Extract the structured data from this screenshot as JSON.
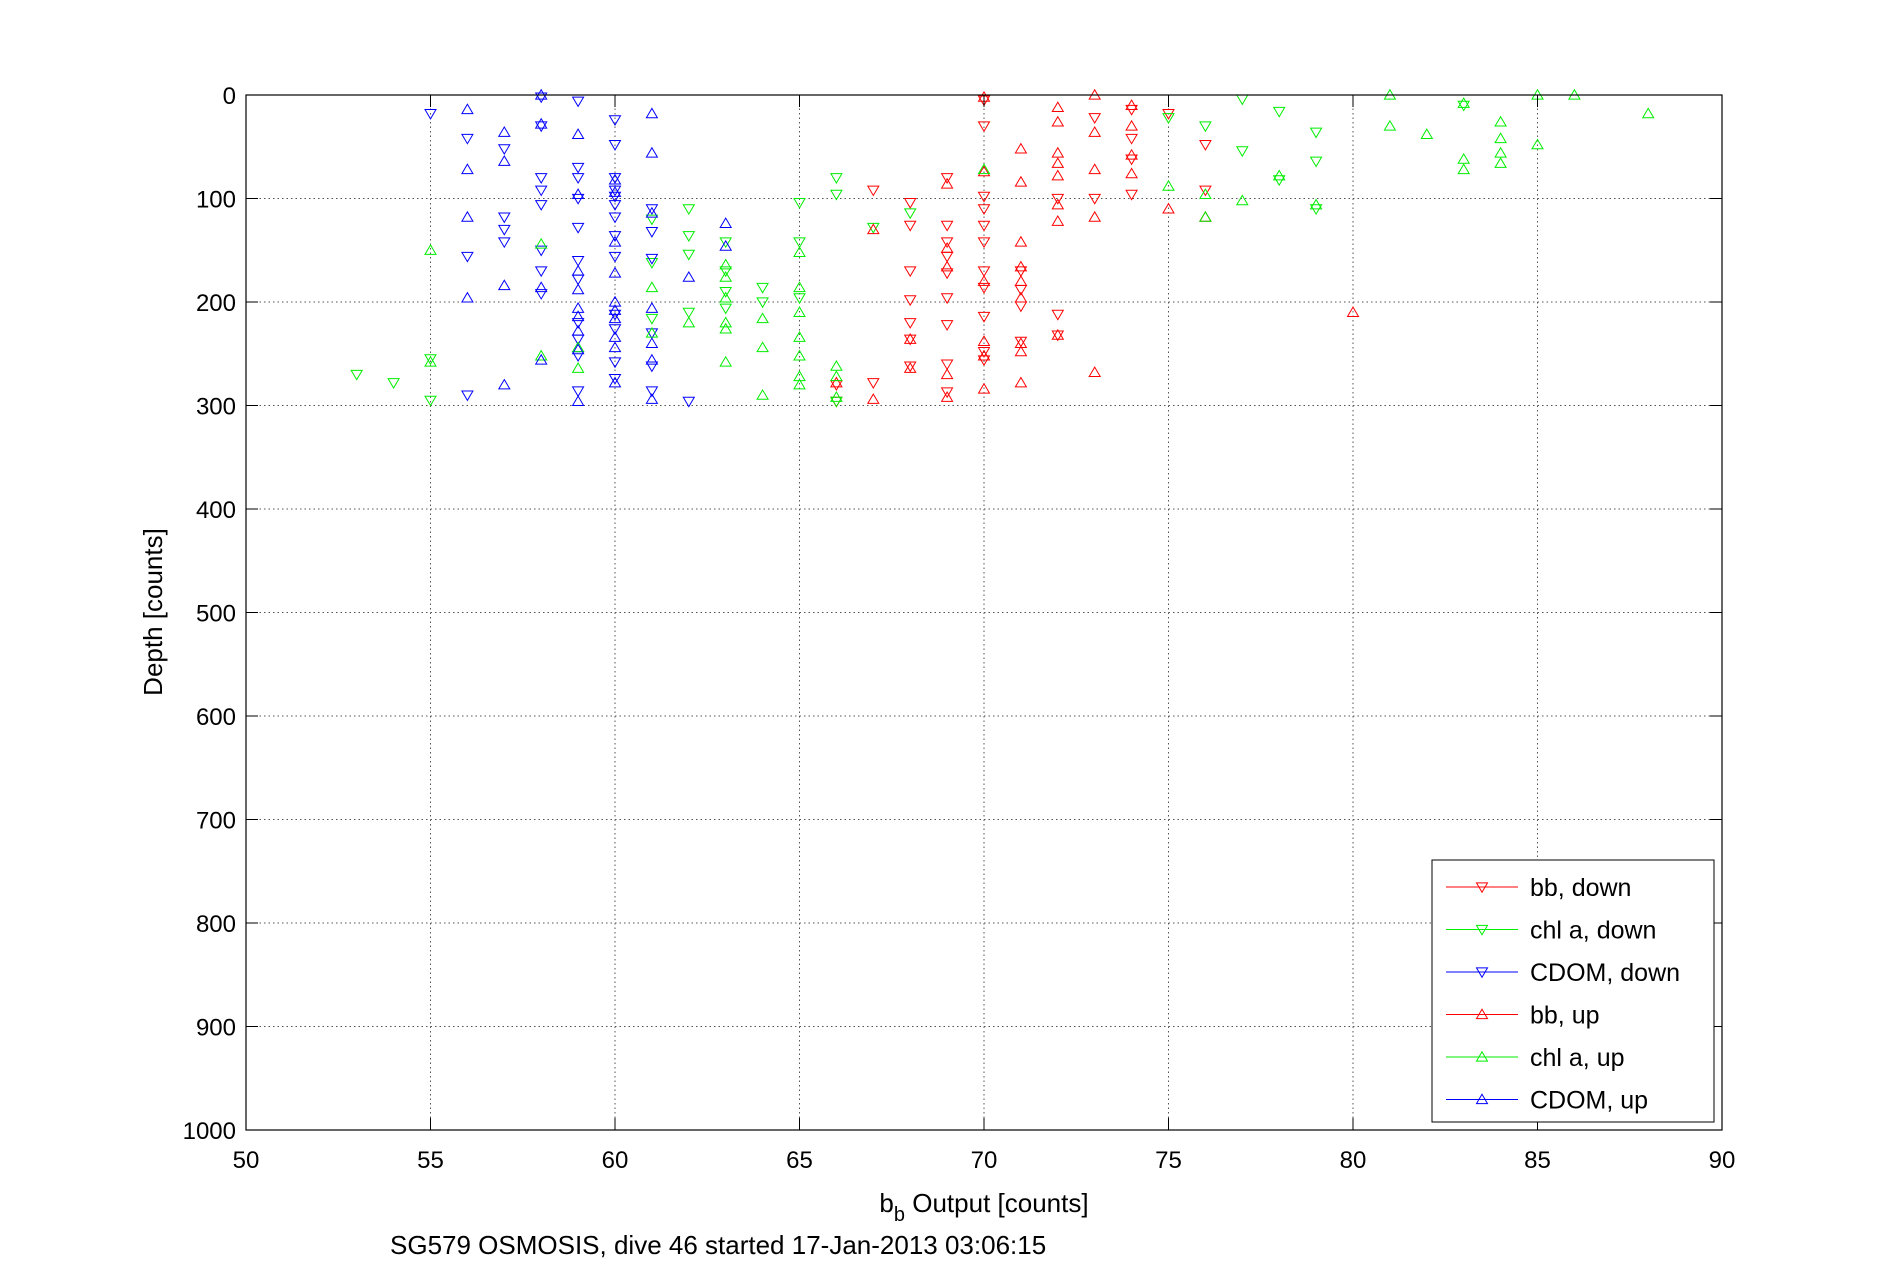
{
  "caption": "SG579 OSMOSIS, dive 46 started 17-Jan-2013 03:06:15",
  "chart_data": {
    "type": "scatter",
    "xlabel_main": "b",
    "xlabel_sub": "b",
    "xlabel_rest": " Output [counts]",
    "ylabel": "Depth [counts]",
    "xlim": [
      50,
      90
    ],
    "ylim": [
      0,
      1000
    ],
    "y_reversed": true,
    "xticks": [
      50,
      55,
      60,
      65,
      70,
      75,
      80,
      85,
      90
    ],
    "yticks": [
      0,
      100,
      200,
      300,
      400,
      500,
      600,
      700,
      800,
      900,
      1000
    ],
    "grid": true,
    "legend_position": "bottom-right",
    "series": [
      {
        "name": "bb, down",
        "color": "#ff0000",
        "marker": "triangle-down",
        "points": [
          [
            67,
            92
          ],
          [
            68,
            104
          ],
          [
            68,
            126
          ],
          [
            68,
            170
          ],
          [
            68,
            198
          ],
          [
            68,
            220
          ],
          [
            68,
            236
          ],
          [
            68,
            262
          ],
          [
            69,
            80
          ],
          [
            69,
            126
          ],
          [
            69,
            142
          ],
          [
            69,
            156
          ],
          [
            69,
            172
          ],
          [
            69,
            196
          ],
          [
            69,
            222
          ],
          [
            69,
            260
          ],
          [
            69,
            287
          ],
          [
            70,
            5
          ],
          [
            70,
            30
          ],
          [
            70,
            98
          ],
          [
            70,
            110
          ],
          [
            70,
            126
          ],
          [
            70,
            142
          ],
          [
            70,
            170
          ],
          [
            70,
            186
          ],
          [
            70,
            214
          ],
          [
            70,
            248
          ],
          [
            70,
            256
          ],
          [
            71,
            170
          ],
          [
            71,
            188
          ],
          [
            71,
            204
          ],
          [
            71,
            238
          ],
          [
            72,
            100
          ],
          [
            72,
            212
          ],
          [
            72,
            232
          ],
          [
            73,
            22
          ],
          [
            73,
            100
          ],
          [
            74,
            14
          ],
          [
            74,
            42
          ],
          [
            74,
            62
          ],
          [
            74,
            96
          ],
          [
            75,
            18
          ],
          [
            76,
            48
          ],
          [
            76,
            92
          ],
          [
            66,
            280
          ],
          [
            66,
            296
          ],
          [
            67,
            278
          ]
        ]
      },
      {
        "name": "chl a, down",
        "color": "#00ee00",
        "marker": "triangle-down",
        "points": [
          [
            53,
            270
          ],
          [
            54,
            278
          ],
          [
            55,
            255
          ],
          [
            55,
            295
          ],
          [
            61,
            120
          ],
          [
            61,
            162
          ],
          [
            61,
            216
          ],
          [
            62,
            110
          ],
          [
            62,
            136
          ],
          [
            62,
            154
          ],
          [
            62,
            210
          ],
          [
            63,
            142
          ],
          [
            63,
            170
          ],
          [
            63,
            190
          ],
          [
            63,
            206
          ],
          [
            64,
            186
          ],
          [
            64,
            200
          ],
          [
            65,
            104
          ],
          [
            65,
            142
          ],
          [
            65,
            196
          ],
          [
            66,
            80
          ],
          [
            66,
            96
          ],
          [
            66,
            296
          ],
          [
            67,
            128
          ],
          [
            68,
            114
          ],
          [
            75,
            22
          ],
          [
            76,
            30
          ],
          [
            77,
            4
          ],
          [
            77,
            54
          ],
          [
            78,
            16
          ],
          [
            78,
            82
          ],
          [
            79,
            36
          ],
          [
            79,
            64
          ],
          [
            79,
            110
          ],
          [
            83,
            10
          ]
        ]
      },
      {
        "name": "CDOM, down",
        "color": "#0000ff",
        "marker": "triangle-down",
        "points": [
          [
            55,
            18
          ],
          [
            56,
            42
          ],
          [
            56,
            156
          ],
          [
            56,
            290
          ],
          [
            57,
            52
          ],
          [
            57,
            118
          ],
          [
            57,
            130
          ],
          [
            57,
            142
          ],
          [
            58,
            2
          ],
          [
            58,
            30
          ],
          [
            58,
            80
          ],
          [
            58,
            92
          ],
          [
            58,
            106
          ],
          [
            58,
            150
          ],
          [
            58,
            170
          ],
          [
            58,
            192
          ],
          [
            59,
            6
          ],
          [
            59,
            70
          ],
          [
            59,
            80
          ],
          [
            59,
            100
          ],
          [
            59,
            128
          ],
          [
            59,
            160
          ],
          [
            59,
            178
          ],
          [
            59,
            220
          ],
          [
            59,
            236
          ],
          [
            59,
            252
          ],
          [
            59,
            286
          ],
          [
            60,
            24
          ],
          [
            60,
            48
          ],
          [
            60,
            80
          ],
          [
            60,
            92
          ],
          [
            60,
            98
          ],
          [
            60,
            106
          ],
          [
            60,
            118
          ],
          [
            60,
            136
          ],
          [
            60,
            156
          ],
          [
            60,
            212
          ],
          [
            60,
            226
          ],
          [
            60,
            258
          ],
          [
            60,
            274
          ],
          [
            61,
            110
          ],
          [
            61,
            132
          ],
          [
            61,
            158
          ],
          [
            61,
            230
          ],
          [
            61,
            262
          ],
          [
            61,
            286
          ],
          [
            62,
            296
          ]
        ]
      },
      {
        "name": "bb, up",
        "color": "#ff0000",
        "marker": "triangle-up",
        "points": [
          [
            67,
            130
          ],
          [
            67,
            294
          ],
          [
            68,
            236
          ],
          [
            68,
            264
          ],
          [
            69,
            86
          ],
          [
            69,
            148
          ],
          [
            69,
            166
          ],
          [
            69,
            270
          ],
          [
            69,
            292
          ],
          [
            70,
            2
          ],
          [
            70,
            74
          ],
          [
            70,
            180
          ],
          [
            70,
            238
          ],
          [
            70,
            252
          ],
          [
            70,
            284
          ],
          [
            71,
            52
          ],
          [
            71,
            84
          ],
          [
            71,
            142
          ],
          [
            71,
            166
          ],
          [
            71,
            180
          ],
          [
            71,
            196
          ],
          [
            71,
            240
          ],
          [
            71,
            248
          ],
          [
            71,
            278
          ],
          [
            72,
            12
          ],
          [
            72,
            26
          ],
          [
            72,
            56
          ],
          [
            72,
            66
          ],
          [
            72,
            78
          ],
          [
            72,
            106
          ],
          [
            72,
            122
          ],
          [
            72,
            232
          ],
          [
            73,
            0
          ],
          [
            73,
            36
          ],
          [
            73,
            72
          ],
          [
            73,
            118
          ],
          [
            73,
            268
          ],
          [
            74,
            10
          ],
          [
            74,
            30
          ],
          [
            74,
            58
          ],
          [
            74,
            76
          ],
          [
            75,
            110
          ],
          [
            76,
            118
          ],
          [
            80,
            210
          ],
          [
            66,
            278
          ]
        ]
      },
      {
        "name": "chl a, up",
        "color": "#00ee00",
        "marker": "triangle-up",
        "points": [
          [
            55,
            150
          ],
          [
            55,
            258
          ],
          [
            58,
            144
          ],
          [
            58,
            252
          ],
          [
            59,
            244
          ],
          [
            59,
            264
          ],
          [
            61,
            186
          ],
          [
            61,
            230
          ],
          [
            62,
            220
          ],
          [
            63,
            164
          ],
          [
            63,
            176
          ],
          [
            63,
            196
          ],
          [
            63,
            220
          ],
          [
            63,
            226
          ],
          [
            63,
            258
          ],
          [
            64,
            216
          ],
          [
            64,
            244
          ],
          [
            64,
            290
          ],
          [
            65,
            152
          ],
          [
            65,
            186
          ],
          [
            65,
            210
          ],
          [
            65,
            234
          ],
          [
            65,
            252
          ],
          [
            65,
            272
          ],
          [
            65,
            280
          ],
          [
            66,
            262
          ],
          [
            66,
            272
          ],
          [
            66,
            292
          ],
          [
            70,
            72
          ],
          [
            75,
            88
          ],
          [
            76,
            96
          ],
          [
            76,
            118
          ],
          [
            77,
            102
          ],
          [
            78,
            78
          ],
          [
            79,
            106
          ],
          [
            81,
            0
          ],
          [
            81,
            30
          ],
          [
            82,
            38
          ],
          [
            83,
            8
          ],
          [
            83,
            62
          ],
          [
            83,
            72
          ],
          [
            84,
            26
          ],
          [
            84,
            42
          ],
          [
            84,
            56
          ],
          [
            84,
            66
          ],
          [
            85,
            0
          ],
          [
            85,
            48
          ],
          [
            86,
            0
          ],
          [
            88,
            18
          ]
        ]
      },
      {
        "name": "CDOM, up",
        "color": "#0000ff",
        "marker": "triangle-up",
        "points": [
          [
            56,
            14
          ],
          [
            56,
            72
          ],
          [
            56,
            118
          ],
          [
            56,
            196
          ],
          [
            57,
            36
          ],
          [
            57,
            64
          ],
          [
            57,
            184
          ],
          [
            57,
            280
          ],
          [
            58,
            0
          ],
          [
            58,
            28
          ],
          [
            58,
            186
          ],
          [
            58,
            256
          ],
          [
            59,
            38
          ],
          [
            59,
            96
          ],
          [
            59,
            170
          ],
          [
            59,
            188
          ],
          [
            59,
            206
          ],
          [
            59,
            214
          ],
          [
            59,
            228
          ],
          [
            59,
            246
          ],
          [
            59,
            296
          ],
          [
            60,
            82
          ],
          [
            60,
            94
          ],
          [
            60,
            142
          ],
          [
            60,
            172
          ],
          [
            60,
            200
          ],
          [
            60,
            208
          ],
          [
            60,
            216
          ],
          [
            60,
            234
          ],
          [
            60,
            244
          ],
          [
            60,
            278
          ],
          [
            61,
            18
          ],
          [
            61,
            56
          ],
          [
            61,
            114
          ],
          [
            61,
            206
          ],
          [
            61,
            240
          ],
          [
            61,
            256
          ],
          [
            61,
            294
          ],
          [
            62,
            176
          ],
          [
            63,
            124
          ],
          [
            63,
            146
          ]
        ]
      }
    ]
  }
}
